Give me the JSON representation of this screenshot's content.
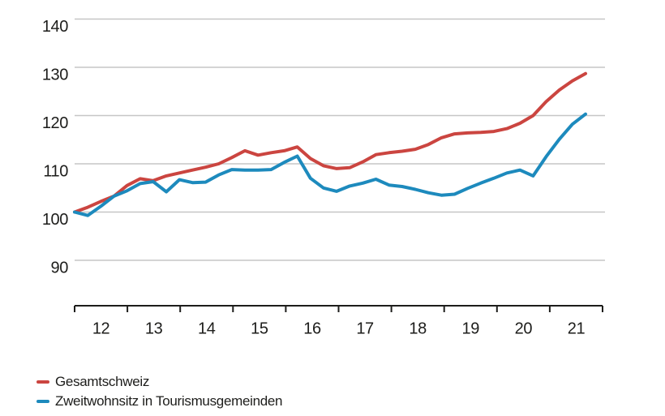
{
  "chart_data": {
    "type": "line",
    "title": "",
    "xlabel": "",
    "ylabel": "",
    "index_base": 100,
    "grid": "horizontal",
    "legend_position": "bottom-left",
    "y_ticks": [
      90,
      100,
      110,
      120,
      130,
      140
    ],
    "ylim": [
      85,
      145
    ],
    "x_tick_labels": [
      "12",
      "13",
      "14",
      "15",
      "16",
      "17",
      "18",
      "19",
      "20",
      "21"
    ],
    "x": [
      "2012 Q1",
      "2012 Q2",
      "2012 Q3",
      "2012 Q4",
      "2013 Q1",
      "2013 Q2",
      "2013 Q3",
      "2013 Q4",
      "2014 Q1",
      "2014 Q2",
      "2014 Q3",
      "2014 Q4",
      "2015 Q1",
      "2015 Q2",
      "2015 Q3",
      "2015 Q4",
      "2016 Q1",
      "2016 Q2",
      "2016 Q3",
      "2016 Q4",
      "2017 Q1",
      "2017 Q2",
      "2017 Q3",
      "2017 Q4",
      "2018 Q1",
      "2018 Q2",
      "2018 Q3",
      "2018 Q4",
      "2019 Q1",
      "2019 Q2",
      "2019 Q3",
      "2019 Q4",
      "2020 Q1",
      "2020 Q2",
      "2020 Q3",
      "2020 Q4",
      "2021 Q1",
      "2021 Q2",
      "2021 Q3",
      "2021 Q4"
    ],
    "series": [
      {
        "name": "Gesamtschweiz",
        "color": "#cb4540",
        "values": [
          100.0,
          101.0,
          102.2,
          103.3,
          105.5,
          106.9,
          106.5,
          107.5,
          108.1,
          108.7,
          109.3,
          110.0,
          111.3,
          112.7,
          111.8,
          112.3,
          112.7,
          113.5,
          111.1,
          109.6,
          109.0,
          109.2,
          110.4,
          111.9,
          112.3,
          112.6,
          113.0,
          114.0,
          115.4,
          116.2,
          116.4,
          116.5,
          116.7,
          117.3,
          118.4,
          120.0,
          122.9,
          125.3,
          127.2,
          128.7
        ]
      },
      {
        "name": "Zweitwohnsitz in Tourismusgemeinden",
        "color": "#1d8abd",
        "values": [
          100.0,
          99.3,
          101.2,
          103.3,
          104.4,
          105.9,
          106.3,
          104.2,
          106.7,
          106.1,
          106.2,
          107.7,
          108.8,
          108.7,
          108.7,
          108.8,
          110.3,
          111.6,
          107.0,
          105.0,
          104.3,
          105.4,
          106.0,
          106.8,
          105.6,
          105.3,
          104.7,
          104.0,
          103.5,
          103.7,
          104.9,
          106.0,
          107.0,
          108.1,
          108.7,
          107.5,
          111.5,
          115.1,
          118.2,
          120.3
        ]
      }
    ]
  },
  "colors": {
    "background": "#ffffff",
    "gridline": "#c6c6c6",
    "axis": "#1d1d1b",
    "text": "#1d1d1b"
  },
  "legend": {
    "items": [
      {
        "label": "Gesamtschweiz"
      },
      {
        "label": "Zweitwohnsitz in Tourismusgemeinden"
      }
    ]
  }
}
